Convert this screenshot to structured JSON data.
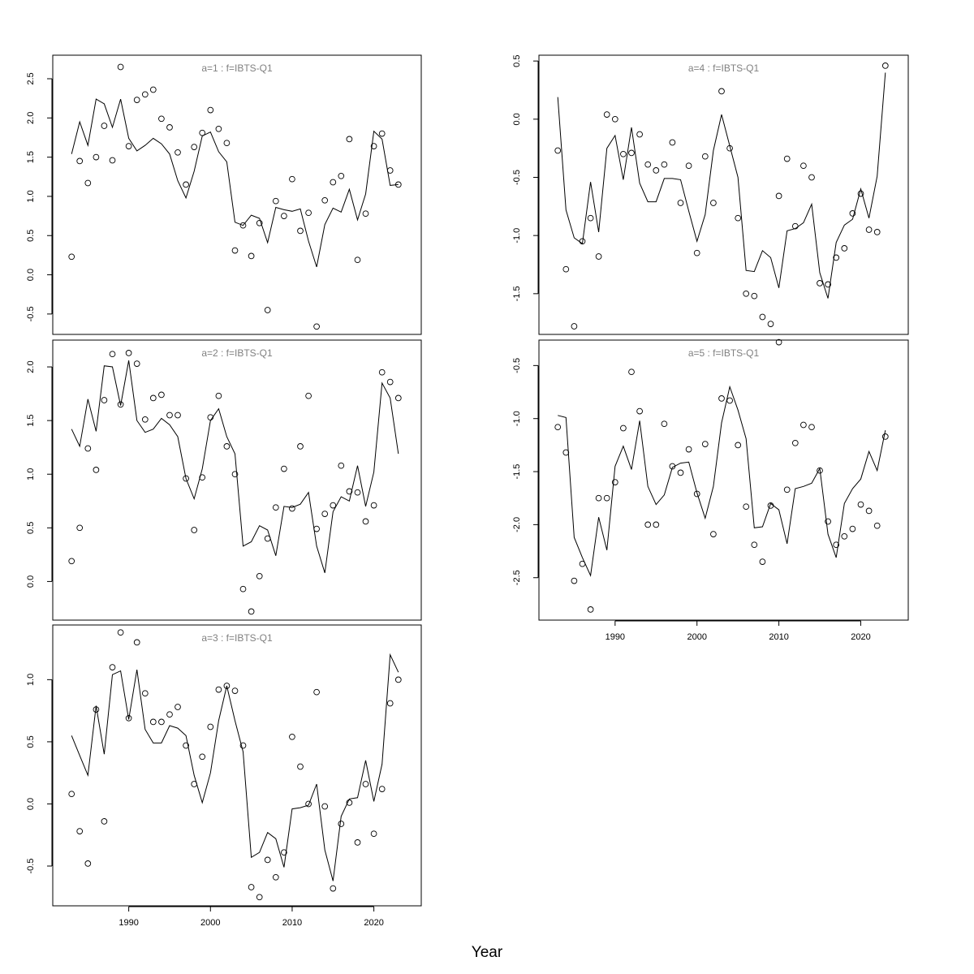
{
  "figure": {
    "xlabel": "Year"
  },
  "chart_data": [
    {
      "type": "line",
      "title": "a=1  :  f=IBTS-Q1",
      "xlabel": "Year",
      "ylabel": "",
      "xlim": [
        1980.7,
        2025.8
      ],
      "ylim": [
        -0.76,
        2.8
      ],
      "yticks": [
        -0.5,
        0.0,
        0.5,
        1.0,
        1.5,
        2.0,
        2.5
      ],
      "xticks": [],
      "series": [
        {
          "kind": "line",
          "x": [
            1983,
            1984,
            1985,
            1986,
            1987,
            1988,
            1989,
            1990,
            1991,
            1992,
            1993,
            1994,
            1995,
            1996,
            1997,
            1998,
            1999,
            2000,
            2001,
            2002,
            2003,
            2004,
            2005,
            2006,
            2007,
            2008,
            2009,
            2010,
            2011,
            2012,
            2013,
            2014,
            2015,
            2016,
            2017,
            2018,
            2019,
            2020,
            2021,
            2022,
            2023
          ],
          "values": [
            1.54,
            1.95,
            1.65,
            2.24,
            2.18,
            1.88,
            2.24,
            1.74,
            1.58,
            1.65,
            1.74,
            1.67,
            1.54,
            1.2,
            0.98,
            1.32,
            1.77,
            1.82,
            1.57,
            1.44,
            0.67,
            0.63,
            0.76,
            0.72,
            0.41,
            0.86,
            0.83,
            0.81,
            0.84,
            0.43,
            0.1,
            0.64,
            0.85,
            0.8,
            1.09,
            0.7,
            1.03,
            1.83,
            1.73,
            1.14,
            1.15
          ]
        },
        {
          "kind": "points",
          "x": [
            1983,
            1984,
            1985,
            1986,
            1987,
            1988,
            1989,
            1990,
            1991,
            1992,
            1993,
            1994,
            1995,
            1996,
            1997,
            1998,
            1999,
            2000,
            2001,
            2002,
            2003,
            2004,
            2005,
            2006,
            2007,
            2008,
            2009,
            2010,
            2011,
            2012,
            2013,
            2014,
            2015,
            2016,
            2017,
            2018,
            2019,
            2020,
            2021,
            2022,
            2023
          ],
          "values": [
            0.23,
            1.45,
            1.17,
            1.5,
            1.9,
            1.46,
            2.65,
            1.64,
            2.23,
            2.3,
            2.36,
            1.99,
            1.88,
            1.56,
            1.15,
            1.63,
            1.81,
            2.1,
            1.86,
            1.68,
            0.31,
            0.63,
            0.24,
            0.66,
            -0.45,
            0.94,
            0.75,
            1.22,
            0.56,
            0.79,
            -0.66,
            0.95,
            1.18,
            1.26,
            1.73,
            0.19,
            0.78,
            1.64,
            1.8,
            1.33,
            1.15
          ]
        }
      ]
    },
    {
      "type": "line",
      "title": "a=2  :  f=IBTS-Q1",
      "xlabel": "Year",
      "ylabel": "",
      "xlim": [
        1980.7,
        2025.8
      ],
      "ylim": [
        -0.36,
        2.25
      ],
      "yticks": [
        0.0,
        0.5,
        1.0,
        1.5,
        2.0
      ],
      "xticks": [],
      "series": [
        {
          "kind": "line",
          "x": [
            1983,
            1984,
            1985,
            1986,
            1987,
            1988,
            1989,
            1990,
            1991,
            1992,
            1993,
            1994,
            1995,
            1996,
            1997,
            1998,
            1999,
            2000,
            2001,
            2002,
            2003,
            2004,
            2005,
            2006,
            2007,
            2008,
            2009,
            2010,
            2011,
            2012,
            2013,
            2014,
            2015,
            2016,
            2017,
            2018,
            2019,
            2020,
            2021,
            2022,
            2023
          ],
          "values": [
            1.42,
            1.26,
            1.7,
            1.4,
            2.01,
            2.0,
            1.64,
            2.06,
            1.5,
            1.39,
            1.42,
            1.52,
            1.46,
            1.35,
            0.96,
            0.77,
            1.05,
            1.5,
            1.61,
            1.35,
            1.19,
            0.33,
            0.37,
            0.52,
            0.48,
            0.24,
            0.7,
            0.69,
            0.72,
            0.83,
            0.33,
            0.08,
            0.65,
            0.79,
            0.75,
            1.08,
            0.7,
            1.02,
            1.85,
            1.71,
            1.19
          ]
        },
        {
          "kind": "points",
          "x": [
            1983,
            1984,
            1985,
            1986,
            1987,
            1988,
            1989,
            1990,
            1991,
            1992,
            1993,
            1994,
            1995,
            1996,
            1997,
            1998,
            1999,
            2000,
            2001,
            2002,
            2003,
            2004,
            2005,
            2006,
            2007,
            2008,
            2009,
            2010,
            2011,
            2012,
            2013,
            2014,
            2015,
            2016,
            2017,
            2018,
            2019,
            2020,
            2021,
            2022,
            2023
          ],
          "values": [
            0.19,
            0.5,
            1.24,
            1.04,
            1.69,
            2.12,
            1.65,
            2.13,
            2.03,
            1.51,
            1.71,
            1.74,
            1.55,
            1.55,
            0.96,
            0.48,
            0.97,
            1.53,
            1.73,
            1.26,
            1.0,
            -0.07,
            -0.28,
            0.05,
            0.4,
            0.69,
            1.05,
            0.68,
            1.26,
            1.73,
            0.49,
            0.63,
            0.71,
            1.08,
            0.84,
            0.83,
            0.56,
            0.71,
            1.95,
            1.86,
            1.71
          ]
        }
      ]
    },
    {
      "type": "line",
      "title": "a=3  :  f=IBTS-Q1",
      "xlabel": "Year",
      "ylabel": "",
      "xlim": [
        1980.7,
        2025.8
      ],
      "ylim": [
        -0.82,
        1.44
      ],
      "yticks": [
        -0.5,
        0.0,
        0.5,
        1.0
      ],
      "xticks": [
        1990,
        2000,
        2010,
        2020
      ],
      "series": [
        {
          "kind": "line",
          "x": [
            1983,
            1984,
            1985,
            1986,
            1987,
            1988,
            1989,
            1990,
            1991,
            1992,
            1993,
            1994,
            1995,
            1996,
            1997,
            1998,
            1999,
            2000,
            2001,
            2002,
            2003,
            2004,
            2005,
            2006,
            2007,
            2008,
            2009,
            2010,
            2011,
            2012,
            2013,
            2014,
            2015,
            2016,
            2017,
            2018,
            2019,
            2020,
            2021,
            2022,
            2023
          ],
          "values": [
            0.55,
            0.39,
            0.23,
            0.79,
            0.4,
            1.04,
            1.07,
            0.68,
            1.08,
            0.6,
            0.49,
            0.49,
            0.63,
            0.61,
            0.55,
            0.23,
            0.01,
            0.25,
            0.67,
            0.95,
            0.67,
            0.42,
            -0.43,
            -0.39,
            -0.23,
            -0.28,
            -0.51,
            -0.04,
            -0.03,
            -0.01,
            0.16,
            -0.37,
            -0.62,
            -0.1,
            0.04,
            0.05,
            0.35,
            0.02,
            0.32,
            1.2,
            1.06
          ]
        },
        {
          "kind": "points",
          "x": [
            1983,
            1984,
            1985,
            1986,
            1987,
            1988,
            1989,
            1990,
            1991,
            1992,
            1993,
            1994,
            1995,
            1996,
            1997,
            1998,
            1999,
            2000,
            2001,
            2002,
            2003,
            2004,
            2005,
            2006,
            2007,
            2008,
            2009,
            2010,
            2011,
            2012,
            2013,
            2014,
            2015,
            2016,
            2017,
            2018,
            2019,
            2020,
            2021,
            2022,
            2023
          ],
          "values": [
            0.08,
            -0.22,
            -0.48,
            0.76,
            -0.14,
            1.1,
            1.38,
            0.69,
            1.3,
            0.89,
            0.66,
            0.66,
            0.72,
            0.78,
            0.47,
            0.16,
            0.38,
            0.62,
            0.92,
            0.95,
            0.91,
            0.47,
            -0.67,
            -0.75,
            -0.45,
            -0.59,
            -0.39,
            0.54,
            0.3,
            0.0,
            0.9,
            -0.02,
            -0.68,
            -0.16,
            0.01,
            -0.31,
            0.16,
            -0.24,
            0.12,
            0.81,
            1.0
          ]
        }
      ]
    },
    {
      "type": "line",
      "title": "a=4  :  f=IBTS-Q1",
      "xlabel": "Year",
      "ylabel": "",
      "xlim": [
        1980.7,
        2025.8
      ],
      "ylim": [
        -1.85,
        0.55
      ],
      "yticks": [
        -1.5,
        -1.0,
        -0.5,
        0.0,
        0.5
      ],
      "xticks": [],
      "series": [
        {
          "kind": "line",
          "x": [
            1983,
            1984,
            1985,
            1986,
            1987,
            1988,
            1989,
            1990,
            1991,
            1992,
            1993,
            1994,
            1995,
            1996,
            1997,
            1998,
            1999,
            2000,
            2001,
            2002,
            2003,
            2004,
            2005,
            2006,
            2007,
            2008,
            2009,
            2010,
            2011,
            2012,
            2013,
            2014,
            2015,
            2016,
            2017,
            2018,
            2019,
            2020,
            2021,
            2022,
            2023
          ],
          "values": [
            0.19,
            -0.78,
            -1.02,
            -1.07,
            -0.54,
            -0.97,
            -0.25,
            -0.14,
            -0.52,
            -0.07,
            -0.55,
            -0.71,
            -0.71,
            -0.51,
            -0.51,
            -0.52,
            -0.79,
            -1.05,
            -0.82,
            -0.27,
            0.04,
            -0.23,
            -0.5,
            -1.3,
            -1.31,
            -1.13,
            -1.19,
            -1.45,
            -0.96,
            -0.94,
            -0.89,
            -0.73,
            -1.32,
            -1.54,
            -1.06,
            -0.91,
            -0.86,
            -0.6,
            -0.85,
            -0.49,
            0.4
          ]
        },
        {
          "kind": "points",
          "x": [
            1983,
            1984,
            1985,
            1986,
            1987,
            1988,
            1989,
            1990,
            1991,
            1992,
            1993,
            1994,
            1995,
            1996,
            1997,
            1998,
            1999,
            2000,
            2001,
            2002,
            2003,
            2004,
            2005,
            2006,
            2007,
            2008,
            2009,
            2010,
            2011,
            2012,
            2013,
            2014,
            2015,
            2016,
            2017,
            2018,
            2019,
            2020,
            2021,
            2022,
            2023
          ],
          "values": [
            -0.27,
            -1.29,
            -1.78,
            -1.05,
            -0.85,
            -1.18,
            0.04,
            0.0,
            -0.3,
            -0.29,
            -0.13,
            -0.39,
            -0.44,
            -0.39,
            -0.2,
            -0.72,
            -0.4,
            -1.15,
            -0.32,
            -0.72,
            0.24,
            -0.25,
            -0.85,
            -1.5,
            -1.52,
            -1.7,
            -1.76,
            -0.66,
            -0.34,
            -0.92,
            -0.4,
            -0.5,
            -1.41,
            -1.42,
            -1.19,
            -1.11,
            -0.81,
            -0.64,
            -0.95,
            -0.97,
            0.46
          ]
        }
      ]
    },
    {
      "type": "line",
      "title": "a=5  :  f=IBTS-Q1",
      "xlabel": "Year",
      "ylabel": "",
      "xlim": [
        1980.7,
        2025.8
      ],
      "ylim": [
        -2.9,
        -0.26
      ],
      "yticks": [
        -2.5,
        -2.0,
        -1.5,
        -1.0,
        -0.5
      ],
      "xticks": [
        1990,
        2000,
        2010,
        2020
      ],
      "series": [
        {
          "kind": "line",
          "x": [
            1983,
            1984,
            1985,
            1986,
            1987,
            1988,
            1989,
            1990,
            1991,
            1992,
            1993,
            1994,
            1995,
            1996,
            1997,
            1998,
            1999,
            2000,
            2001,
            2002,
            2003,
            2004,
            2005,
            2006,
            2007,
            2008,
            2009,
            2010,
            2011,
            2012,
            2013,
            2014,
            2015,
            2016,
            2017,
            2018,
            2019,
            2020,
            2021,
            2022,
            2023
          ],
          "values": [
            -0.97,
            -0.99,
            -2.12,
            -2.31,
            -2.48,
            -1.93,
            -2.24,
            -1.45,
            -1.26,
            -1.48,
            -1.02,
            -1.64,
            -1.81,
            -1.72,
            -1.46,
            -1.42,
            -1.41,
            -1.7,
            -1.94,
            -1.64,
            -1.04,
            -0.7,
            -0.92,
            -1.19,
            -2.03,
            -2.02,
            -1.8,
            -1.86,
            -2.18,
            -1.66,
            -1.64,
            -1.61,
            -1.47,
            -2.09,
            -2.31,
            -1.8,
            -1.66,
            -1.57,
            -1.31,
            -1.49,
            -1.11
          ]
        },
        {
          "kind": "points",
          "x": [
            1983,
            1984,
            1985,
            1986,
            1987,
            1988,
            1989,
            1990,
            1991,
            1992,
            1993,
            1994,
            1995,
            1996,
            1997,
            1998,
            1999,
            2000,
            2001,
            2002,
            2003,
            2004,
            2005,
            2006,
            2007,
            2008,
            2009,
            2010,
            2011,
            2012,
            2013,
            2014,
            2015,
            2016,
            2017,
            2018,
            2019,
            2020,
            2021,
            2022,
            2023
          ],
          "values": [
            -1.08,
            -1.32,
            -2.53,
            -2.37,
            -2.8,
            -1.75,
            -1.75,
            -1.6,
            -1.09,
            -0.56,
            -0.93,
            -2.0,
            -2.0,
            -1.05,
            -1.45,
            -1.51,
            -1.29,
            -1.71,
            -1.24,
            -2.09,
            -0.81,
            -0.83,
            -1.25,
            -1.83,
            -2.19,
            -2.35,
            -1.82,
            -0.28,
            -1.67,
            -1.23,
            -1.06,
            -1.08,
            -1.49,
            -1.97,
            -2.19,
            -2.11,
            -2.04,
            -1.81,
            -1.87,
            -2.01,
            -1.17
          ]
        }
      ]
    }
  ]
}
